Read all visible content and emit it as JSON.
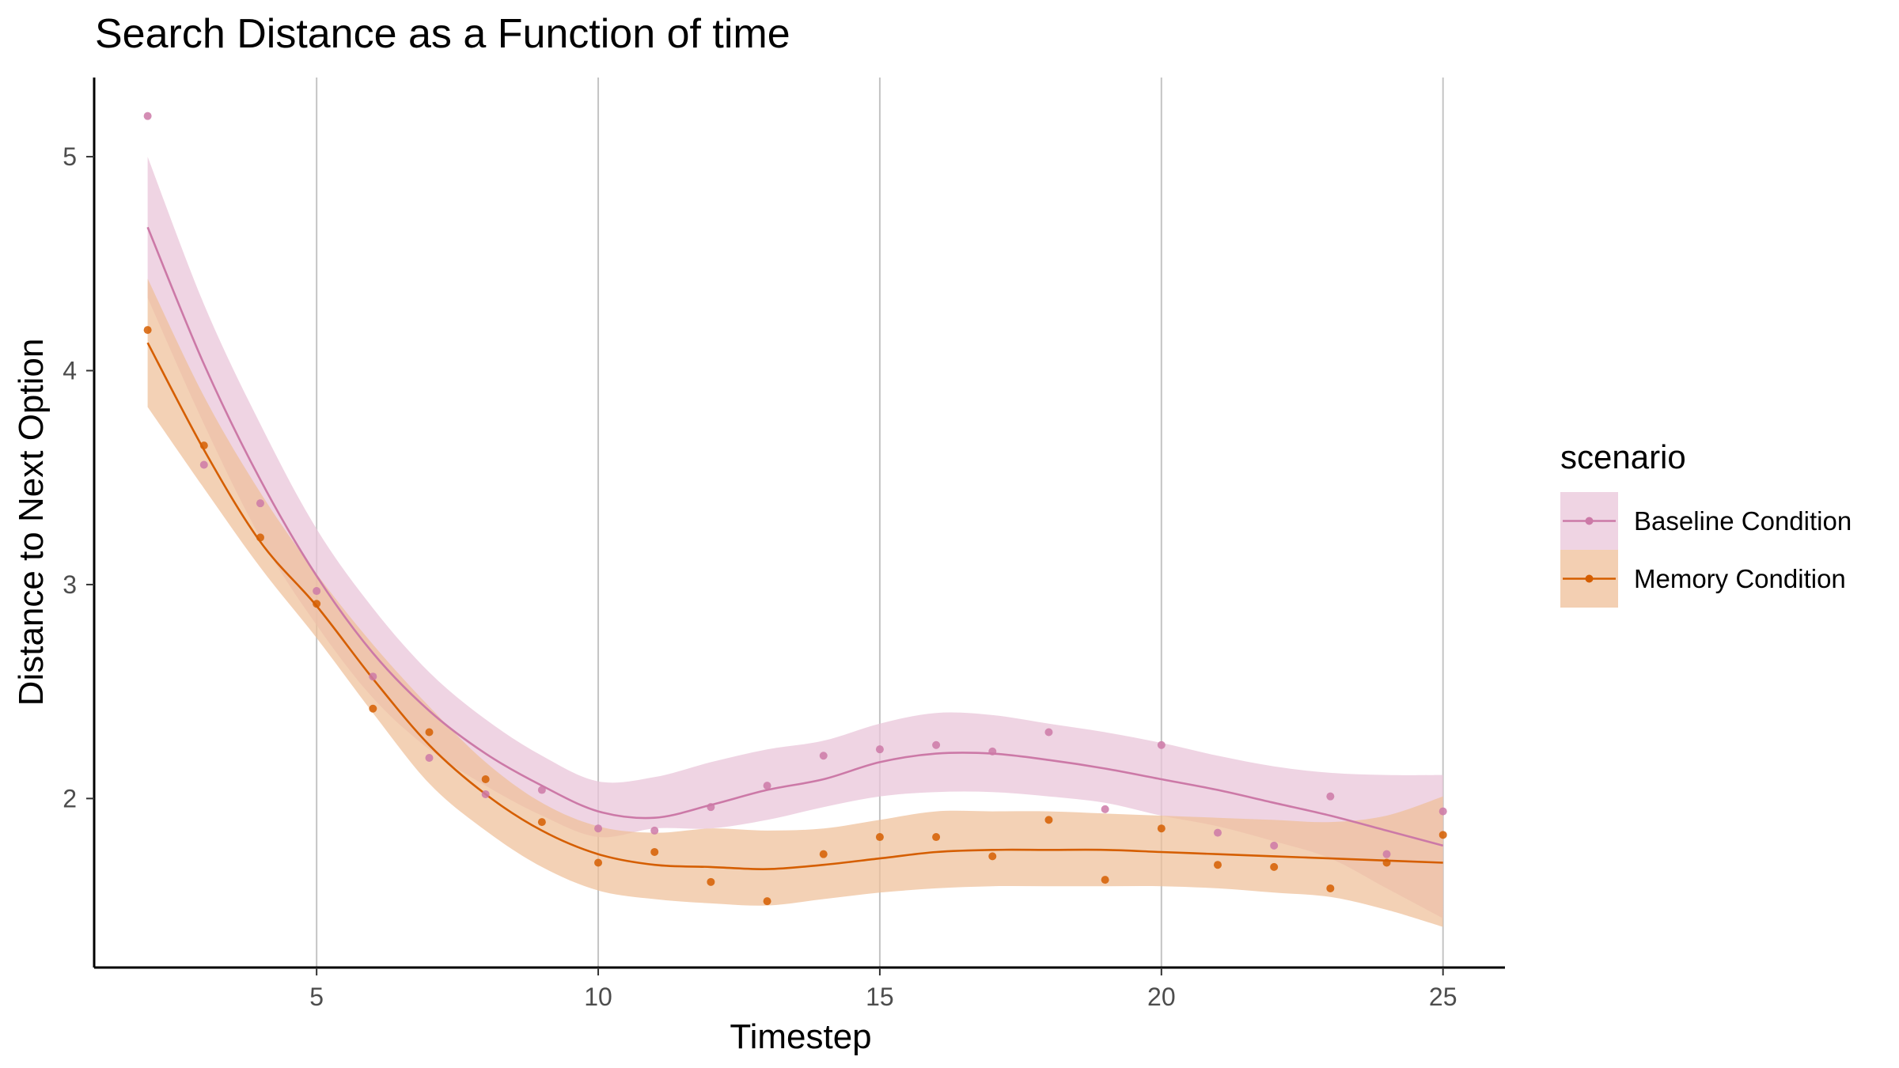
{
  "chart_data": {
    "type": "scatter",
    "title": "Search Distance as a Function of time",
    "xlabel": "Timestep",
    "ylabel": "Distance to Next Option",
    "xlim": [
      1.05,
      26.1
    ],
    "ylim": [
      1.21,
      5.37
    ],
    "x_ticks": [
      5,
      10,
      15,
      20,
      25
    ],
    "y_ticks": [
      2,
      3,
      4,
      5
    ],
    "grid": "vertical major lines",
    "legend": {
      "title": "scenario",
      "position": "right"
    },
    "series": [
      {
        "name": "Baseline Condition",
        "color": "#cc79a7",
        "band_color": "#e9c6da",
        "points": [
          [
            2,
            5.19
          ],
          [
            3,
            3.56
          ],
          [
            4,
            3.38
          ],
          [
            5,
            2.97
          ],
          [
            6,
            2.57
          ],
          [
            7,
            2.19
          ],
          [
            8,
            2.02
          ],
          [
            9,
            2.04
          ],
          [
            10,
            1.86
          ],
          [
            11,
            1.85
          ],
          [
            12,
            1.96
          ],
          [
            13,
            2.06
          ],
          [
            14,
            2.2
          ],
          [
            15,
            2.23
          ],
          [
            16,
            2.25
          ],
          [
            17,
            2.22
          ],
          [
            18,
            2.31
          ],
          [
            19,
            1.95
          ],
          [
            20,
            2.25
          ],
          [
            21,
            1.84
          ],
          [
            22,
            1.78
          ],
          [
            23,
            2.01
          ],
          [
            24,
            1.74
          ],
          [
            25,
            1.94
          ]
        ],
        "smooth": [
          [
            2,
            4.67
          ],
          [
            3,
            4.03
          ],
          [
            4,
            3.49
          ],
          [
            5,
            3.04
          ],
          [
            6,
            2.68
          ],
          [
            7,
            2.41
          ],
          [
            8,
            2.21
          ],
          [
            9,
            2.06
          ],
          [
            10,
            1.94
          ],
          [
            11,
            1.91
          ],
          [
            12,
            1.97
          ],
          [
            13,
            2.04
          ],
          [
            14,
            2.09
          ],
          [
            15,
            2.17
          ],
          [
            16,
            2.21
          ],
          [
            17,
            2.21
          ],
          [
            18,
            2.18
          ],
          [
            19,
            2.14
          ],
          [
            20,
            2.09
          ],
          [
            21,
            2.04
          ],
          [
            22,
            1.98
          ],
          [
            23,
            1.92
          ],
          [
            24,
            1.85
          ],
          [
            25,
            1.78
          ]
        ],
        "ci_upper": [
          [
            2,
            5.0
          ],
          [
            3,
            4.31
          ],
          [
            4,
            3.75
          ],
          [
            5,
            3.26
          ],
          [
            6,
            2.89
          ],
          [
            7,
            2.59
          ],
          [
            8,
            2.37
          ],
          [
            9,
            2.2
          ],
          [
            10,
            2.08
          ],
          [
            11,
            2.1
          ],
          [
            12,
            2.17
          ],
          [
            13,
            2.23
          ],
          [
            14,
            2.27
          ],
          [
            15,
            2.35
          ],
          [
            16,
            2.4
          ],
          [
            17,
            2.39
          ],
          [
            18,
            2.35
          ],
          [
            19,
            2.31
          ],
          [
            20,
            2.26
          ],
          [
            21,
            2.2
          ],
          [
            22,
            2.15
          ],
          [
            23,
            2.12
          ],
          [
            24,
            2.11
          ],
          [
            25,
            2.11
          ]
        ],
        "ci_lower": [
          [
            2,
            4.34
          ],
          [
            3,
            3.75
          ],
          [
            4,
            3.22
          ],
          [
            5,
            2.81
          ],
          [
            6,
            2.47
          ],
          [
            7,
            2.23
          ],
          [
            8,
            2.06
          ],
          [
            9,
            1.92
          ],
          [
            10,
            1.82
          ],
          [
            11,
            1.86
          ],
          [
            12,
            1.86
          ],
          [
            13,
            1.9
          ],
          [
            14,
            1.96
          ],
          [
            15,
            2.01
          ],
          [
            16,
            2.03
          ],
          [
            17,
            2.03
          ],
          [
            18,
            2.01
          ],
          [
            19,
            1.98
          ],
          [
            20,
            1.92
          ],
          [
            21,
            1.87
          ],
          [
            22,
            1.8
          ],
          [
            23,
            1.72
          ],
          [
            24,
            1.58
          ],
          [
            25,
            1.44
          ]
        ]
      },
      {
        "name": "Memory Condition",
        "color": "#d55e00",
        "band_color": "#efbf98",
        "points": [
          [
            2,
            4.19
          ],
          [
            3,
            3.65
          ],
          [
            4,
            3.22
          ],
          [
            5,
            2.91
          ],
          [
            6,
            2.42
          ],
          [
            7,
            2.31
          ],
          [
            8,
            2.09
          ],
          [
            9,
            1.89
          ],
          [
            10,
            1.7
          ],
          [
            11,
            1.75
          ],
          [
            12,
            1.61
          ],
          [
            13,
            1.52
          ],
          [
            14,
            1.74
          ],
          [
            15,
            1.82
          ],
          [
            16,
            1.82
          ],
          [
            17,
            1.73
          ],
          [
            18,
            1.9
          ],
          [
            19,
            1.62
          ],
          [
            20,
            1.86
          ],
          [
            21,
            1.69
          ],
          [
            22,
            1.68
          ],
          [
            23,
            1.58
          ],
          [
            24,
            1.7
          ],
          [
            25,
            1.83
          ]
        ],
        "smooth": [
          [
            2,
            4.13
          ],
          [
            3,
            3.63
          ],
          [
            4,
            3.2
          ],
          [
            5,
            2.9
          ],
          [
            6,
            2.56
          ],
          [
            7,
            2.25
          ],
          [
            8,
            2.02
          ],
          [
            9,
            1.85
          ],
          [
            10,
            1.74
          ],
          [
            11,
            1.69
          ],
          [
            12,
            1.68
          ],
          [
            13,
            1.67
          ],
          [
            14,
            1.69
          ],
          [
            15,
            1.72
          ],
          [
            16,
            1.75
          ],
          [
            17,
            1.76
          ],
          [
            18,
            1.76
          ],
          [
            19,
            1.76
          ],
          [
            20,
            1.75
          ],
          [
            21,
            1.74
          ],
          [
            22,
            1.73
          ],
          [
            23,
            1.72
          ],
          [
            24,
            1.71
          ],
          [
            25,
            1.7
          ]
        ],
        "ci_upper": [
          [
            2,
            4.43
          ],
          [
            3,
            3.88
          ],
          [
            4,
            3.43
          ],
          [
            5,
            3.05
          ],
          [
            6,
            2.72
          ],
          [
            7,
            2.43
          ],
          [
            8,
            2.17
          ],
          [
            9,
            1.98
          ],
          [
            10,
            1.87
          ],
          [
            11,
            1.84
          ],
          [
            12,
            1.86
          ],
          [
            13,
            1.85
          ],
          [
            14,
            1.86
          ],
          [
            15,
            1.9
          ],
          [
            16,
            1.94
          ],
          [
            17,
            1.94
          ],
          [
            18,
            1.94
          ],
          [
            19,
            1.93
          ],
          [
            20,
            1.92
          ],
          [
            21,
            1.91
          ],
          [
            22,
            1.9
          ],
          [
            23,
            1.89
          ],
          [
            24,
            1.92
          ],
          [
            25,
            2.01
          ]
        ],
        "ci_lower": [
          [
            2,
            3.83
          ],
          [
            3,
            3.45
          ],
          [
            4,
            3.08
          ],
          [
            5,
            2.75
          ],
          [
            6,
            2.4
          ],
          [
            7,
            2.07
          ],
          [
            8,
            1.85
          ],
          [
            9,
            1.68
          ],
          [
            10,
            1.57
          ],
          [
            11,
            1.53
          ],
          [
            12,
            1.51
          ],
          [
            13,
            1.5
          ],
          [
            14,
            1.53
          ],
          [
            15,
            1.56
          ],
          [
            16,
            1.58
          ],
          [
            17,
            1.59
          ],
          [
            18,
            1.59
          ],
          [
            19,
            1.59
          ],
          [
            20,
            1.59
          ],
          [
            21,
            1.58
          ],
          [
            22,
            1.56
          ],
          [
            23,
            1.54
          ],
          [
            24,
            1.48
          ],
          [
            25,
            1.4
          ]
        ]
      }
    ]
  }
}
